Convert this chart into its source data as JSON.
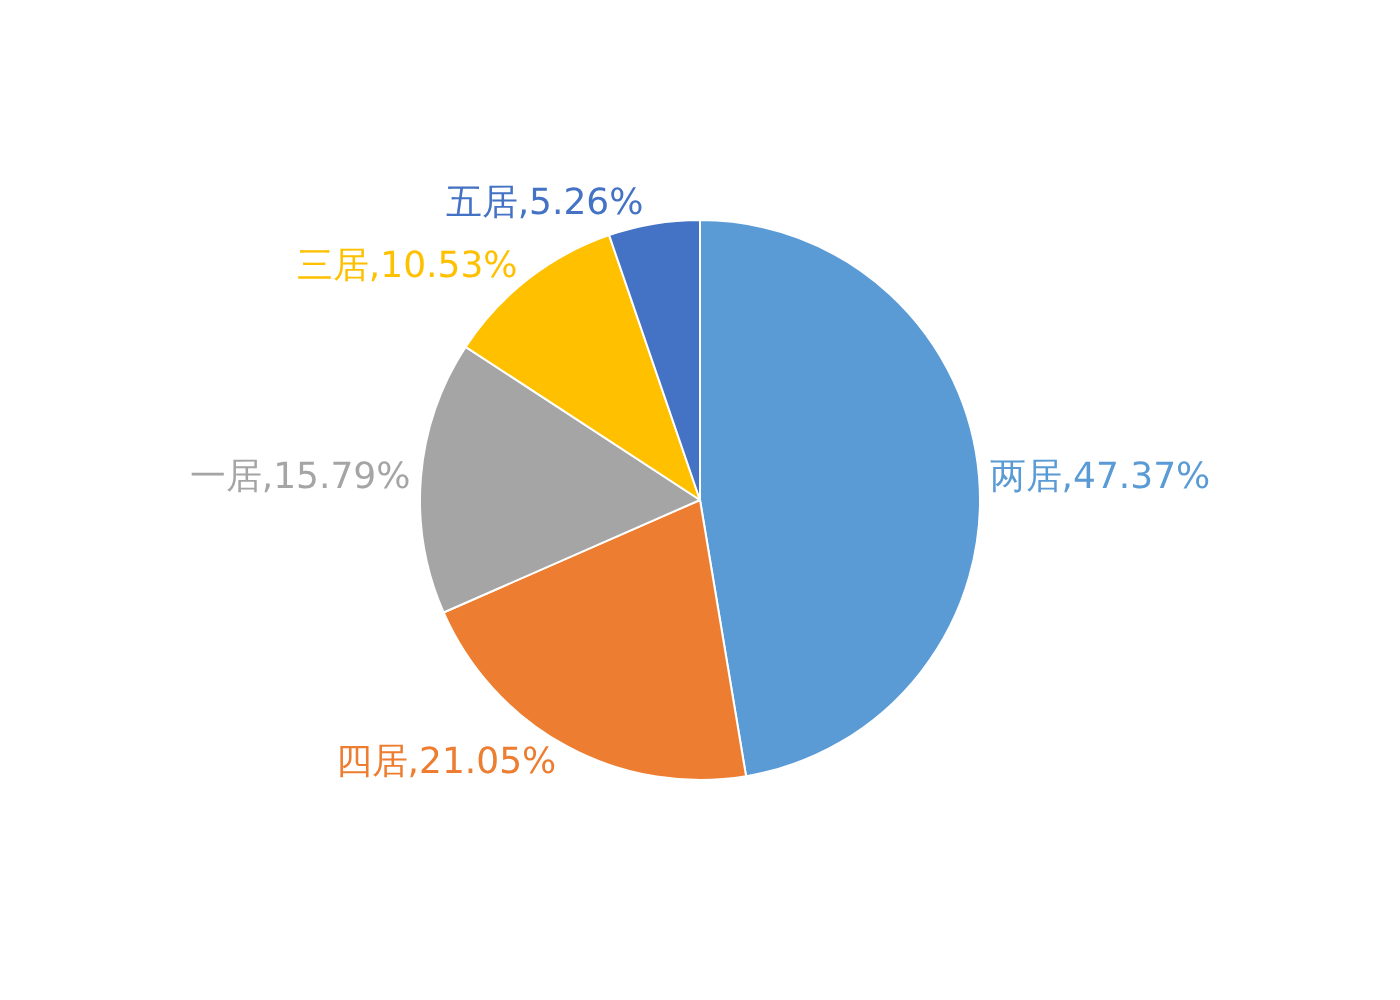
{
  "chart_data": {
    "type": "pie",
    "categories": [
      "两居",
      "四居",
      "一居",
      "三居",
      "五居"
    ],
    "values": [
      47.37,
      21.05,
      15.79,
      10.53,
      5.26
    ],
    "colors": [
      "#5b9bd5",
      "#ed7d31",
      "#a5a5a5",
      "#ffc000",
      "#4472c4"
    ],
    "value_labels": [
      "47.37%",
      "21.05%",
      "15.79%",
      "10.53%",
      "5.26%"
    ],
    "legend": false
  }
}
